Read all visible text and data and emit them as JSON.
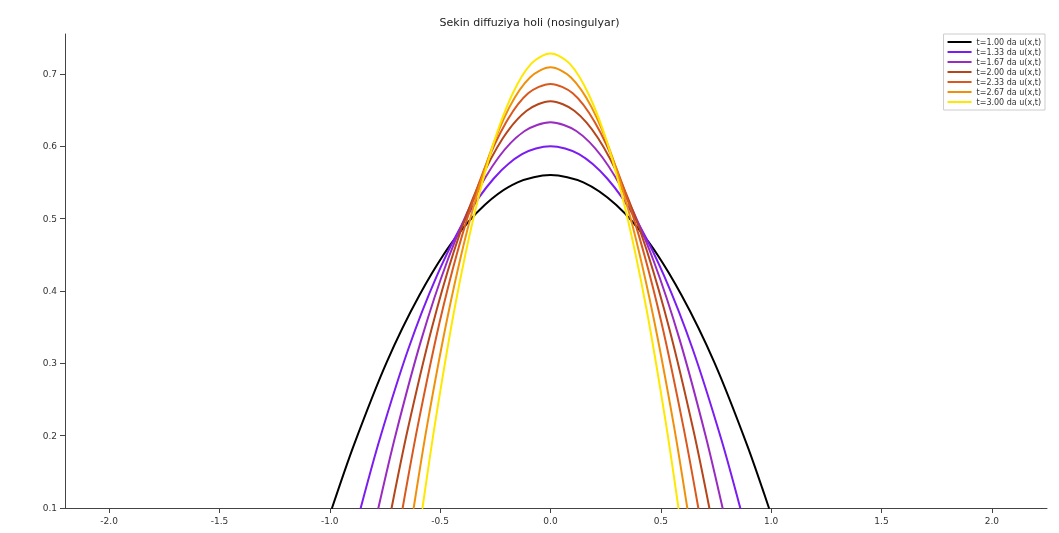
{
  "chart_data": {
    "type": "line",
    "title": "Sekin diffuziya holi (nosingulyar)",
    "xlim": [
      -2.2,
      2.25
    ],
    "ylim": [
      0.1,
      0.755
    ],
    "xticks": [
      {
        "value": -2,
        "label": "-2.0"
      },
      -1.5,
      {
        "value": -1,
        "label": "-1.0"
      },
      -0.5,
      {
        "value": 0,
        "label": "0.0"
      },
      0.5,
      {
        "value": 1,
        "label": "1.0"
      },
      1.5,
      {
        "value": 2,
        "label": "2.0"
      }
    ],
    "yticks": [
      0.1,
      0.2,
      0.3,
      0.4,
      0.5,
      0.6,
      0.7
    ],
    "grid": false,
    "legend": "top right",
    "marker": "none",
    "line_style": "solid",
    "series": [
      {
        "name": "t=1.00 da u(x,t)",
        "color": "#000000",
        "x": [
          -0.99,
          -0.891,
          -0.743,
          -0.594,
          -0.446,
          -0.297,
          -0.149,
          0,
          0.149,
          0.297,
          0.446,
          0.594,
          0.743,
          0.891,
          0.99
        ],
        "values": [
          0.1,
          0.187,
          0.301,
          0.394,
          0.467,
          0.519,
          0.55,
          0.56,
          0.55,
          0.519,
          0.467,
          0.394,
          0.301,
          0.187,
          0.1
        ]
      },
      {
        "name": "t=1.33 da u(x,t)",
        "color": "#7a1cf2",
        "x": [
          -0.86,
          -0.774,
          -0.645,
          -0.516,
          -0.387,
          -0.258,
          -0.129,
          0,
          0.129,
          0.258,
          0.387,
          0.516,
          0.645,
          0.774,
          0.86
        ],
        "values": [
          0.1,
          0.195,
          0.319,
          0.42,
          0.499,
          0.555,
          0.589,
          0.6,
          0.589,
          0.555,
          0.499,
          0.42,
          0.319,
          0.195,
          0.1
        ]
      },
      {
        "name": "t=1.67 da u(x,t)",
        "color": "#9a2bc0",
        "x": [
          -0.78,
          -0.702,
          -0.585,
          -0.468,
          -0.351,
          -0.234,
          -0.117,
          0,
          0.117,
          0.234,
          0.351,
          0.468,
          0.585,
          0.702,
          0.78
        ],
        "values": [
          0.1,
          0.201,
          0.333,
          0.441,
          0.525,
          0.585,
          0.621,
          0.633,
          0.621,
          0.585,
          0.525,
          0.441,
          0.333,
          0.201,
          0.1
        ]
      },
      {
        "name": "t=2.00 da u(x,t)",
        "color": "#b5451b",
        "x": [
          -0.72,
          -0.648,
          -0.54,
          -0.432,
          -0.324,
          -0.216,
          -0.108,
          0,
          0.108,
          0.216,
          0.324,
          0.432,
          0.54,
          0.648,
          0.72
        ],
        "values": [
          0.1,
          0.207,
          0.346,
          0.46,
          0.548,
          0.611,
          0.649,
          0.662,
          0.649,
          0.611,
          0.548,
          0.46,
          0.346,
          0.207,
          0.1
        ]
      },
      {
        "name": "t=2.33 da u(x,t)",
        "color": "#d9581e",
        "x": [
          -0.67,
          -0.603,
          -0.503,
          -0.402,
          -0.302,
          -0.201,
          -0.101,
          0,
          0.101,
          0.201,
          0.302,
          0.402,
          0.503,
          0.603,
          0.67
        ],
        "values": [
          0.1,
          0.211,
          0.356,
          0.475,
          0.567,
          0.633,
          0.673,
          0.686,
          0.673,
          0.633,
          0.567,
          0.475,
          0.356,
          0.211,
          0.1
        ]
      },
      {
        "name": "t=2.67 da u(x,t)",
        "color": "#f0900a",
        "x": [
          -0.62,
          -0.558,
          -0.465,
          -0.372,
          -0.279,
          -0.186,
          -0.093,
          0,
          0.093,
          0.186,
          0.279,
          0.372,
          0.465,
          0.558,
          0.62
        ],
        "values": [
          0.1,
          0.216,
          0.366,
          0.49,
          0.586,
          0.654,
          0.695,
          0.709,
          0.695,
          0.654,
          0.586,
          0.49,
          0.366,
          0.216,
          0.1
        ]
      },
      {
        "name": "t=3.00 da u(x,t)",
        "color": "#ffe800",
        "x": [
          -0.58,
          -0.522,
          -0.435,
          -0.348,
          -0.261,
          -0.174,
          -0.087,
          0,
          0.087,
          0.174,
          0.261,
          0.348,
          0.435,
          0.522,
          0.58
        ],
        "values": [
          0.1,
          0.219,
          0.375,
          0.502,
          0.601,
          0.671,
          0.714,
          0.728,
          0.714,
          0.671,
          0.601,
          0.502,
          0.375,
          0.219,
          0.1
        ]
      }
    ]
  }
}
